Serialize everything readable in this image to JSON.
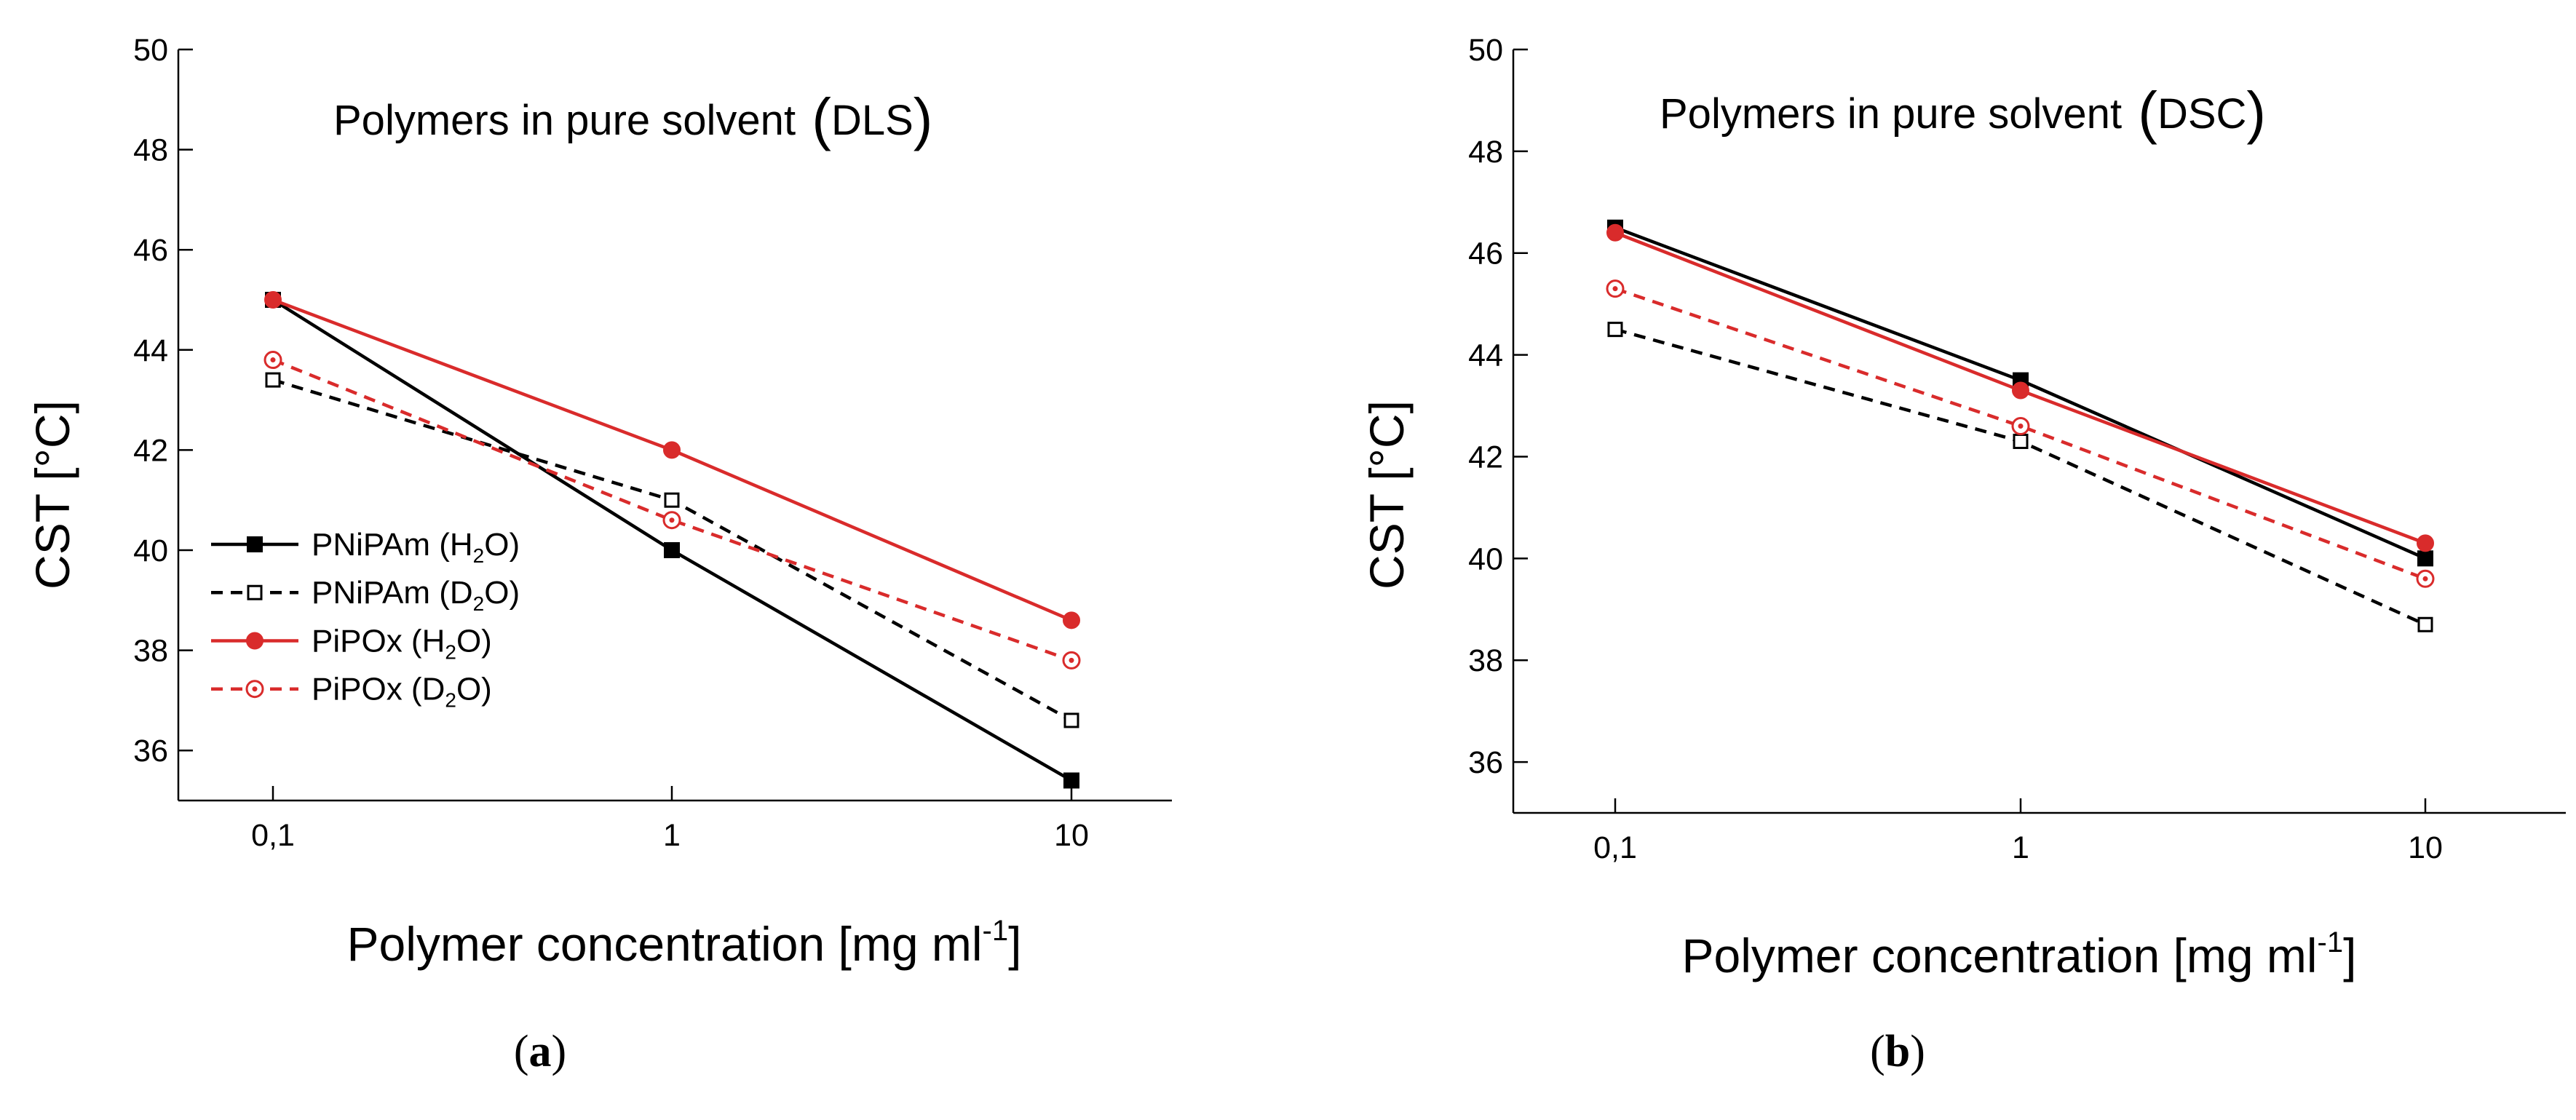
{
  "chart_data": [
    {
      "type": "line",
      "panel_label": "a",
      "title": "Polymers in pure solvent",
      "title_tag": "DLS",
      "xlabel": "Polymer concentration [mg ml",
      "xlabel_sup": "-1",
      "xlabel_end": "]",
      "ylabel": "CST [°C]",
      "xscale": "log",
      "x": [
        0.1,
        1,
        10
      ],
      "xtick_labels": [
        "0,1",
        "1",
        "10"
      ],
      "ylim": [
        35,
        50
      ],
      "yticks": [
        36,
        38,
        40,
        42,
        44,
        46,
        48,
        50
      ],
      "grid": false,
      "legend_position": "left",
      "series": [
        {
          "name": "PNiPAm (H",
          "sub": "2",
          "name_end": "O)",
          "color": "#000000",
          "dashed": false,
          "marker": "filled-square",
          "values": [
            45.0,
            40.0,
            35.4
          ]
        },
        {
          "name": "PNiPAm (D",
          "sub": "2",
          "name_end": "O)",
          "color": "#000000",
          "dashed": true,
          "marker": "open-square",
          "values": [
            43.4,
            41.0,
            36.6
          ]
        },
        {
          "name": "PiPOx (H",
          "sub": "2",
          "name_end": "O)",
          "color": "#d92b2b",
          "dashed": false,
          "marker": "filled-circle",
          "values": [
            45.0,
            42.0,
            38.6
          ]
        },
        {
          "name": "PiPOx (D",
          "sub": "2",
          "name_end": "O)",
          "color": "#d92b2b",
          "dashed": true,
          "marker": "open-circle",
          "values": [
            43.8,
            40.6,
            37.8
          ]
        }
      ]
    },
    {
      "type": "line",
      "panel_label": "b",
      "title": "Polymers in pure solvent",
      "title_tag": "DSC",
      "xlabel": "Polymer concentration [mg ml",
      "xlabel_sup": "-1",
      "xlabel_end": "]",
      "ylabel": "CST [°C]",
      "xscale": "log",
      "x": [
        0.1,
        1,
        10
      ],
      "xtick_labels": [
        "0,1",
        "1",
        "10"
      ],
      "ylim": [
        35,
        50
      ],
      "yticks": [
        36,
        38,
        40,
        42,
        44,
        46,
        48,
        50
      ],
      "grid": false,
      "series": [
        {
          "color": "#000000",
          "dashed": false,
          "marker": "filled-square",
          "values": [
            46.5,
            43.5,
            40.0
          ]
        },
        {
          "color": "#000000",
          "dashed": true,
          "marker": "open-square",
          "values": [
            44.5,
            42.3,
            38.7
          ]
        },
        {
          "color": "#d92b2b",
          "dashed": false,
          "marker": "filled-circle",
          "values": [
            46.4,
            43.3,
            40.3
          ]
        },
        {
          "color": "#d92b2b",
          "dashed": true,
          "marker": "open-circle",
          "values": [
            45.3,
            42.6,
            39.6
          ]
        }
      ]
    }
  ]
}
